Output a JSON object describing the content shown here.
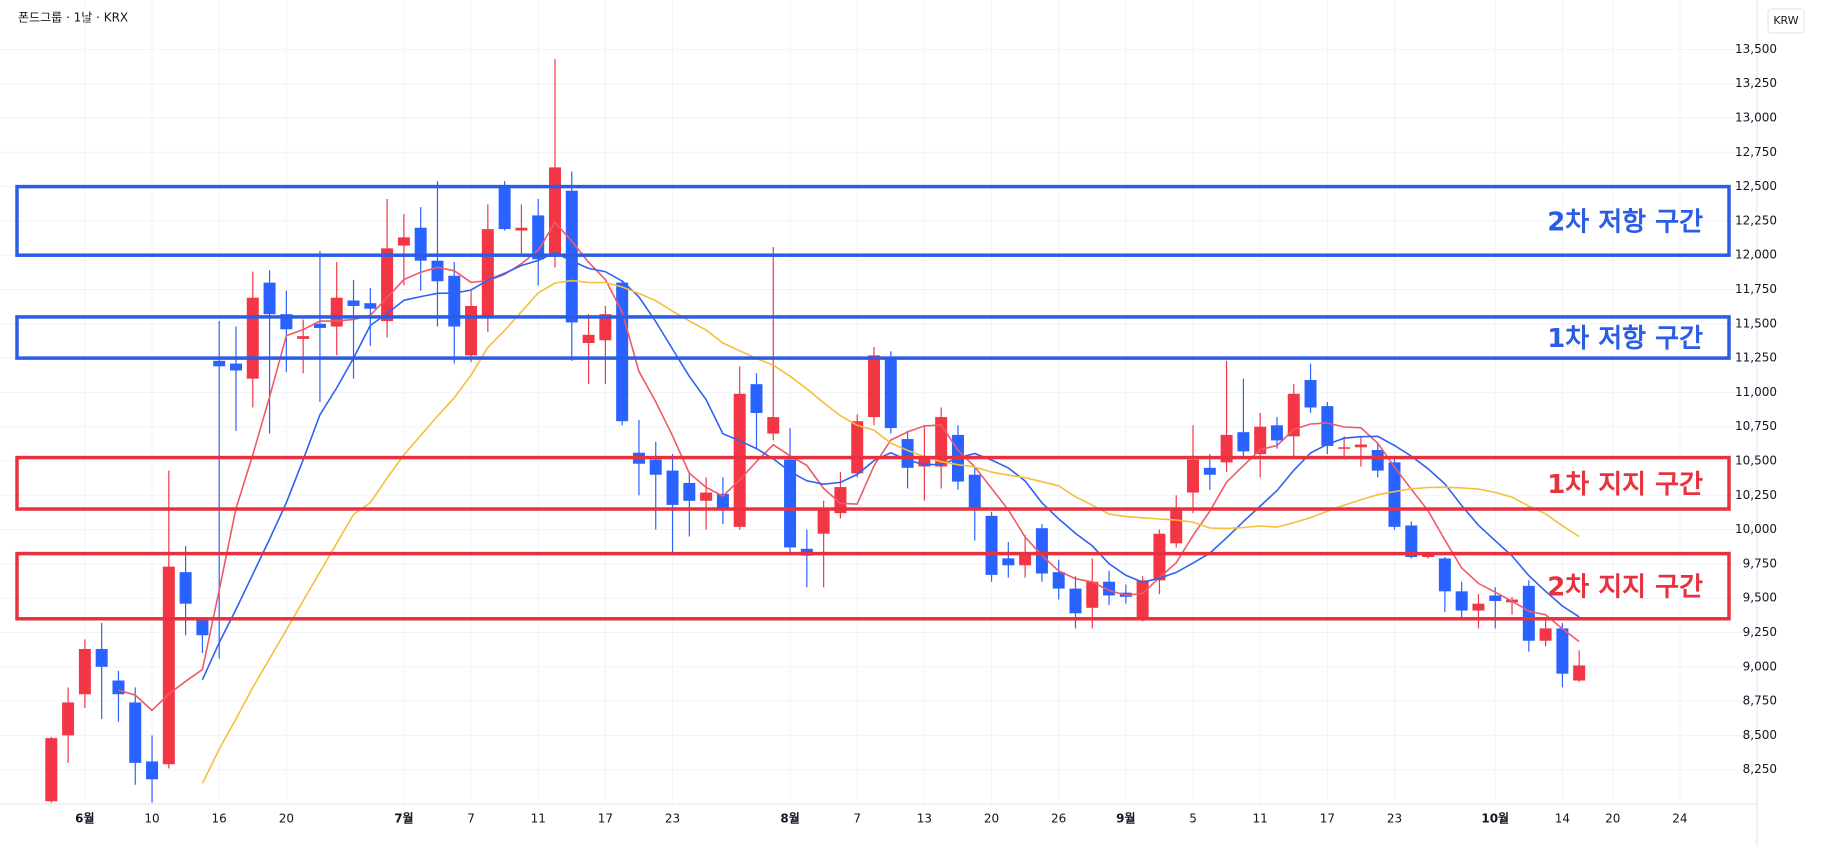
{
  "chart_data": {
    "type": "candlestick",
    "title": "폰드그룹 · 1날 · KRX",
    "currency": "KRW",
    "up_color": "#f23645",
    "down_color": "#2962ff",
    "grid": true,
    "ylim": [
      8000,
      13860
    ],
    "yticks": [
      {
        "value": 8250,
        "label": "8,250"
      },
      {
        "value": 8500,
        "label": "8,500"
      },
      {
        "value": 8750,
        "label": "8,750"
      },
      {
        "value": 9000,
        "label": "9,000"
      },
      {
        "value": 9250,
        "label": "9,250"
      },
      {
        "value": 9500,
        "label": "9,500"
      },
      {
        "value": 9750,
        "label": "9,750"
      },
      {
        "value": 10000,
        "label": "10,000"
      },
      {
        "value": 10250,
        "label": "10,250"
      },
      {
        "value": 10500,
        "label": "10,500"
      },
      {
        "value": 10750,
        "label": "10,750"
      },
      {
        "value": 11000,
        "label": "11,000"
      },
      {
        "value": 11250,
        "label": "11,250"
      },
      {
        "value": 11500,
        "label": "11,500"
      },
      {
        "value": 11750,
        "label": "11,750"
      },
      {
        "value": 12000,
        "label": "12,000"
      },
      {
        "value": 12250,
        "label": "12,250"
      },
      {
        "value": 12500,
        "label": "12,500"
      },
      {
        "value": 12750,
        "label": "12,750"
      },
      {
        "value": 13000,
        "label": "13,000"
      },
      {
        "value": 13250,
        "label": "13,250"
      },
      {
        "value": 13500,
        "label": "13,500"
      }
    ],
    "categories": [
      null,
      null,
      "6월",
      null,
      null,
      null,
      "10",
      null,
      null,
      null,
      "16",
      null,
      null,
      null,
      "20",
      null,
      null,
      null,
      null,
      null,
      null,
      "7월",
      null,
      null,
      null,
      "7",
      null,
      null,
      null,
      "11",
      null,
      null,
      null,
      "17",
      null,
      null,
      null,
      "23",
      null,
      null,
      null,
      null,
      null,
      null,
      "8월",
      null,
      null,
      null,
      "7",
      null,
      null,
      null,
      "13",
      null,
      null,
      null,
      "20",
      null,
      null,
      null,
      "26",
      null,
      null,
      null,
      "9월",
      null,
      null,
      null,
      "5",
      null,
      null,
      null,
      "11",
      null,
      null,
      null,
      "17",
      null,
      null,
      null,
      "23",
      null,
      null,
      null,
      null,
      null,
      "10월",
      null,
      null,
      null,
      "14",
      null,
      null,
      "20",
      null,
      null,
      null,
      "24"
    ],
    "open": [
      8020,
      8500,
      8800,
      9130,
      8900,
      8740,
      8310,
      8290,
      9690,
      9360,
      11230,
      11210,
      11100,
      11800,
      11570,
      11390,
      11500,
      11480,
      11670,
      11650,
      11520,
      12070,
      12200,
      11960,
      11850,
      11270,
      11550,
      12500,
      12180,
      12290,
      12010,
      12470,
      11360,
      11380,
      11800,
      10560,
      10510,
      10430,
      10340,
      10210,
      10260,
      10020,
      11060,
      10700,
      10510,
      9860,
      9970,
      10120,
      10410,
      10820,
      11250,
      10660,
      10460,
      10460,
      10690,
      10400,
      10100,
      9790,
      9740,
      10010,
      9690,
      9570,
      9430,
      9620,
      9540,
      9350,
      9630,
      9900,
      10270,
      10450,
      10490,
      10710,
      10550,
      10760,
      10680,
      11090,
      10900,
      10590,
      10600,
      10580,
      10490,
      10030,
      9800,
      9790,
      9550,
      9410,
      9520,
      9470,
      9590,
      9190,
      9280,
      8900,
      null,
      null,
      null,
      null,
      null,
      null
    ],
    "high": [
      8490,
      8850,
      9200,
      9320,
      8970,
      8850,
      8500,
      10430,
      9880,
      9360,
      11520,
      11480,
      11880,
      11890,
      11740,
      11530,
      12030,
      11950,
      11820,
      11760,
      12410,
      12300,
      12350,
      12540,
      11950,
      11740,
      12370,
      12540,
      12370,
      12410,
      13430,
      12610,
      11570,
      11630,
      11820,
      10800,
      10640,
      10550,
      10420,
      10380,
      10380,
      11190,
      11140,
      12060,
      10740,
      10000,
      10210,
      10420,
      10840,
      11330,
      11300,
      10720,
      10760,
      10890,
      10760,
      10460,
      10130,
      9910,
      9960,
      10040,
      9780,
      9660,
      9790,
      9700,
      9600,
      9660,
      10000,
      10250,
      10760,
      10550,
      11230,
      11100,
      10850,
      10820,
      11060,
      11210,
      10930,
      10680,
      10680,
      10640,
      10520,
      10060,
      9830,
      9800,
      9620,
      9530,
      9580,
      9510,
      9630,
      9360,
      9320,
      9120,
      null,
      null,
      null,
      null,
      null,
      null
    ],
    "low": [
      8010,
      8300,
      8700,
      8620,
      8600,
      8140,
      8010,
      8260,
      9230,
      9100,
      9060,
      10720,
      10890,
      10700,
      11150,
      11140,
      10930,
      11270,
      11100,
      11340,
      11400,
      11780,
      11740,
      11480,
      11210,
      11220,
      11440,
      12180,
      11990,
      11780,
      11910,
      11230,
      11060,
      11060,
      10760,
      10250,
      10000,
      9830,
      9950,
      10000,
      10040,
      10000,
      10590,
      10650,
      9830,
      9580,
      9580,
      10080,
      10380,
      10760,
      10700,
      10300,
      10210,
      10300,
      10290,
      9920,
      9620,
      9650,
      9650,
      9620,
      9490,
      9280,
      9280,
      9450,
      9460,
      9330,
      9530,
      9870,
      10120,
      10290,
      10420,
      10520,
      10380,
      10590,
      10530,
      10850,
      10550,
      10510,
      10460,
      10380,
      10000,
      9790,
      9790,
      9400,
      9360,
      9280,
      9280,
      9380,
      9110,
      9150,
      8850,
      8890,
      null,
      null,
      null,
      null,
      null,
      null
    ],
    "close": [
      8480,
      8740,
      9130,
      9000,
      8800,
      8300,
      8180,
      9730,
      9460,
      9230,
      11190,
      11160,
      11690,
      11570,
      11460,
      11410,
      11470,
      11690,
      11630,
      11610,
      12050,
      12130,
      11960,
      11810,
      11480,
      11630,
      12190,
      12190,
      12200,
      11970,
      12640,
      11510,
      11420,
      11570,
      10790,
      10480,
      10400,
      10180,
      10210,
      10270,
      10160,
      10990,
      10850,
      10820,
      9870,
      9810,
      10150,
      10310,
      10790,
      11270,
      10740,
      10450,
      10530,
      10820,
      10350,
      10140,
      9670,
      9740,
      9830,
      9680,
      9570,
      9390,
      9620,
      9520,
      9510,
      9630,
      9970,
      10160,
      10510,
      10400,
      10690,
      10570,
      10750,
      10650,
      10990,
      10890,
      10610,
      10600,
      10620,
      10430,
      10020,
      9800,
      9820,
      9550,
      9410,
      9460,
      9480,
      9490,
      9190,
      9280,
      8950,
      9010,
      null,
      null,
      null,
      null,
      null,
      null
    ],
    "moving_averages": [
      {
        "color": "#ef5a67",
        "values": [
          null,
          null,
          null,
          null,
          8830,
          8794,
          8682,
          8802,
          8894,
          8980,
          9558,
          10154,
          10546,
          10968,
          11414,
          11458,
          11520,
          11520,
          11532,
          11562,
          11690,
          11822,
          11876,
          11912,
          11886,
          11802,
          11814,
          11860,
          11938,
          12036,
          12238,
          12102,
          11948,
          11822,
          11586,
          11154,
          10932,
          10684,
          10412,
          10308,
          10244,
          10362,
          10496,
          10618,
          10538,
          10468,
          10300,
          10192,
          10186,
          10466,
          10652,
          10712,
          10756,
          10762,
          10578,
          10458,
          10302,
          10144,
          9946,
          9812,
          9698,
          9642,
          9618,
          9556,
          9522,
          9534,
          9650,
          9758,
          9956,
          10134,
          10346,
          10466,
          10584,
          10612,
          10730,
          10770,
          10778,
          10748,
          10742,
          10630,
          10456,
          10294,
          10138,
          9924,
          9720,
          9608,
          9544,
          9478,
          9406,
          9380,
          9278,
          9184,
          null,
          null,
          null,
          null,
          null,
          null
        ]
      },
      {
        "color": "#2f62f0",
        "values": [
          null,
          null,
          null,
          null,
          null,
          null,
          null,
          null,
          null,
          8905,
          9176,
          9418,
          9674,
          9931,
          10197,
          10508,
          10837,
          11033,
          11250,
          11488,
          11574,
          11671,
          11698,
          11722,
          11724,
          11746,
          11818,
          11868,
          11925,
          11961,
          12020,
          11958,
          11904,
          11880,
          11811,
          11696,
          11517,
          11316,
          11117,
          10947,
          10699,
          10647,
          10590,
          10515,
          10423,
          10356,
          10331,
          10344,
          10402,
          10502,
          10560,
          10506,
          10474,
          10474,
          10522,
          10555,
          10507,
          10450,
          10354,
          10195,
          10078,
          9972,
          9881,
          9751,
          9667,
          9616,
          9646,
          9688,
          9756,
          9828,
          9940,
          10058,
          10171,
          10284,
          10432,
          10558,
          10622,
          10666,
          10677,
          10680,
          10613,
          10536,
          10443,
          10333,
          10175,
          10032,
          9919,
          9808,
          9665,
          9550,
          9443,
          9364,
          null,
          null,
          null,
          null,
          null,
          null
        ]
      },
      {
        "color": "#f5bf3c",
        "values": [
          null,
          null,
          null,
          null,
          null,
          null,
          null,
          null,
          null,
          8150,
          8400,
          8620,
          8850,
          9060,
          9270,
          9480,
          9690,
          9900,
          10110,
          10196,
          10375,
          10545,
          10686,
          10827,
          10961,
          11127,
          11328,
          11451,
          11588,
          11725,
          11797,
          11815,
          11801,
          11801,
          11768,
          11721,
          11668,
          11592,
          11521,
          11454,
          11360,
          11303,
          11247,
          11198,
          11117,
          11026,
          10924,
          10830,
          10760,
          10725,
          10630,
          10577,
          10532,
          10495,
          10473,
          10456,
          10419,
          10397,
          10378,
          10349,
          10319,
          10239,
          10178,
          10113,
          10095,
          10086,
          10077,
          10069,
          10055,
          10012,
          10009,
          10015,
          10026,
          10018,
          10050,
          10087,
          10134,
          10177,
          10217,
          10254,
          10277,
          10297,
          10307,
          10309,
          10304,
          10295,
          10271,
          10237,
          10171,
          10115,
          10028,
          9950,
          null,
          null,
          null,
          null,
          null,
          null
        ]
      }
    ],
    "zones": [
      {
        "label": "2차 저항 구간",
        "range": [
          12000,
          12500
        ],
        "color": "#2b5ce6"
      },
      {
        "label": "1차 저항 구간",
        "range": [
          11250,
          11550
        ],
        "color": "#2b5ce6"
      },
      {
        "label": "1차 지지 구간",
        "range": [
          10150,
          10525
        ],
        "color": "#e8313f"
      },
      {
        "label": "2차 지지 구간",
        "range": [
          9350,
          9825
        ],
        "color": "#e8313f"
      }
    ]
  }
}
